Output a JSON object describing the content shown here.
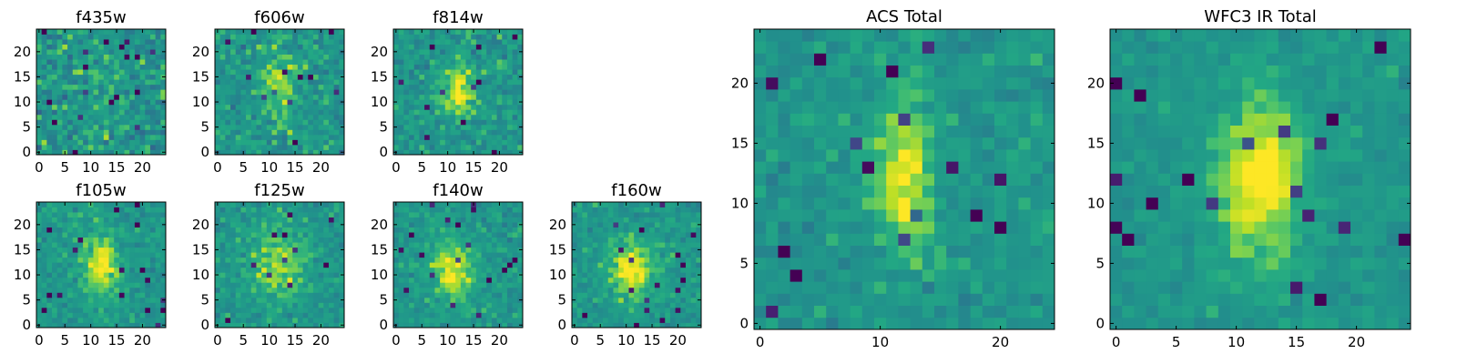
{
  "chart_data": [
    {
      "type": "heatmap",
      "title": "f435w",
      "grid": [
        25,
        25
      ],
      "xlim": [
        -0.5,
        24.5
      ],
      "ylim": [
        -0.5,
        24.5
      ],
      "xticks": [
        0,
        5,
        10,
        15,
        20
      ],
      "yticks": [
        0,
        5,
        10,
        15,
        20
      ],
      "colormap": "viridis",
      "source_peak": [
        12,
        13
      ],
      "source_strength": 0.06,
      "source_sigma": [
        3,
        6
      ],
      "noise": 0.35,
      "seed": 3
    },
    {
      "type": "heatmap",
      "title": "f606w",
      "grid": [
        25,
        25
      ],
      "xlim": [
        -0.5,
        24.5
      ],
      "ylim": [
        -0.5,
        24.5
      ],
      "xticks": [
        0,
        5,
        10,
        15,
        20
      ],
      "yticks": [
        0,
        5,
        10,
        15,
        20
      ],
      "colormap": "viridis",
      "source_peak": [
        12,
        13
      ],
      "source_strength": 0.22,
      "source_sigma": [
        2.2,
        4.5
      ],
      "noise": 0.28,
      "seed": 11
    },
    {
      "type": "heatmap",
      "title": "f814w",
      "grid": [
        25,
        25
      ],
      "xlim": [
        -0.5,
        24.5
      ],
      "ylim": [
        -0.5,
        24.5
      ],
      "xticks": [
        0,
        5,
        10,
        15,
        20
      ],
      "yticks": [
        0,
        5,
        10,
        15,
        20
      ],
      "colormap": "viridis",
      "source_peak": [
        12,
        12
      ],
      "source_strength": 0.32,
      "source_sigma": [
        2.2,
        3.5
      ],
      "noise": 0.26,
      "seed": 19
    },
    {
      "type": "heatmap",
      "title": "f105w",
      "grid": [
        25,
        25
      ],
      "xlim": [
        -0.5,
        24.5
      ],
      "ylim": [
        -0.5,
        24.5
      ],
      "xticks": [
        0,
        5,
        10,
        15,
        20
      ],
      "yticks": [
        0,
        5,
        10,
        15,
        20
      ],
      "colormap": "viridis",
      "source_peak": [
        12,
        12
      ],
      "source_strength": 0.34,
      "source_sigma": [
        2.5,
        4.5
      ],
      "noise": 0.2,
      "seed": 27
    },
    {
      "type": "heatmap",
      "title": "f125w",
      "grid": [
        25,
        25
      ],
      "xlim": [
        -0.5,
        24.5
      ],
      "ylim": [
        -0.5,
        24.5
      ],
      "xticks": [
        0,
        5,
        10,
        15,
        20
      ],
      "yticks": [
        0,
        5,
        10,
        15,
        20
      ],
      "colormap": "viridis",
      "source_peak": [
        12,
        12
      ],
      "source_strength": 0.24,
      "source_sigma": [
        4,
        5
      ],
      "noise": 0.22,
      "seed": 35
    },
    {
      "type": "heatmap",
      "title": "f140w",
      "grid": [
        25,
        25
      ],
      "xlim": [
        -0.5,
        24.5
      ],
      "ylim": [
        -0.5,
        24.5
      ],
      "xticks": [
        0,
        5,
        10,
        15,
        20
      ],
      "yticks": [
        0,
        5,
        10,
        15,
        20
      ],
      "colormap": "viridis",
      "source_peak": [
        11,
        11
      ],
      "source_strength": 0.32,
      "source_sigma": [
        3,
        4
      ],
      "noise": 0.2,
      "seed": 43
    },
    {
      "type": "heatmap",
      "title": "f160w",
      "grid": [
        25,
        25
      ],
      "xlim": [
        -0.5,
        24.5
      ],
      "ylim": [
        -0.5,
        24.5
      ],
      "xticks": [
        0,
        5,
        10,
        15,
        20
      ],
      "yticks": [
        0,
        5,
        10,
        15,
        20
      ],
      "colormap": "viridis",
      "source_peak": [
        11,
        11
      ],
      "source_strength": 0.36,
      "source_sigma": [
        3,
        4
      ],
      "noise": 0.2,
      "seed": 51
    },
    {
      "type": "heatmap",
      "title": "ACS Total",
      "grid": [
        25,
        25
      ],
      "xlim": [
        -0.5,
        24.5
      ],
      "ylim": [
        -0.5,
        24.5
      ],
      "xticks": [
        0,
        10,
        20
      ],
      "yticks": [
        0,
        5,
        10,
        15,
        20
      ],
      "colormap": "viridis",
      "source_peak": [
        12,
        12
      ],
      "source_strength": 0.34,
      "source_sigma": [
        1.8,
        4.5
      ],
      "noise": 0.2,
      "seed": 59
    },
    {
      "type": "heatmap",
      "title": "WFC3 IR Total",
      "grid": [
        25,
        25
      ],
      "xlim": [
        -0.5,
        24.5
      ],
      "ylim": [
        -0.5,
        24.5
      ],
      "xticks": [
        0,
        5,
        10,
        15,
        20
      ],
      "yticks": [
        0,
        5,
        10,
        15,
        20
      ],
      "colormap": "viridis",
      "source_peak": [
        12,
        12
      ],
      "source_strength": 0.4,
      "source_sigma": [
        2.5,
        4.5
      ],
      "noise": 0.14,
      "seed": 67
    }
  ]
}
